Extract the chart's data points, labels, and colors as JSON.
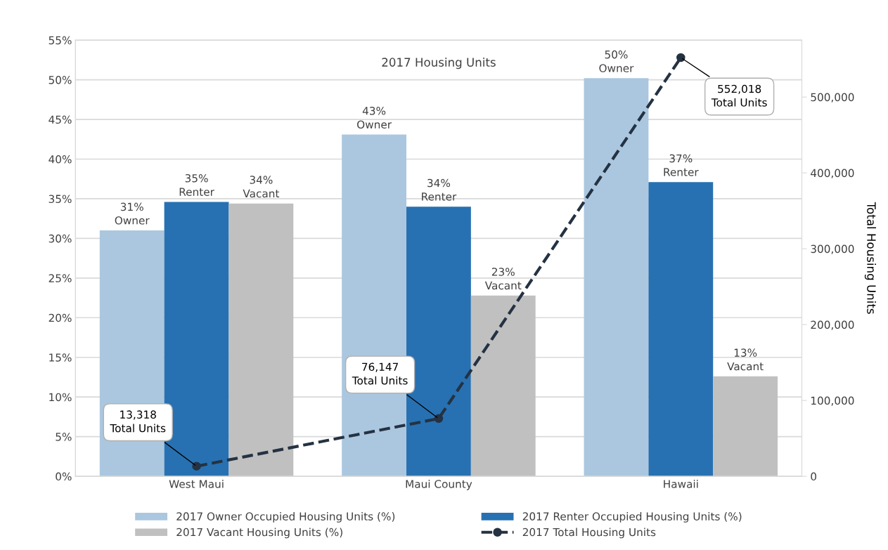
{
  "chart_data": {
    "type": "bar",
    "title": "2017 Housing Units",
    "y2label": "Total Housing Units",
    "categories": [
      "West Maui",
      "Maui County",
      "Hawaii"
    ],
    "series": [
      {
        "name": "2017 Owner Occupied Housing Units (%)",
        "color": "#abc7df",
        "values": [
          31.0,
          43.1,
          50.2
        ],
        "value_labels": [
          "31%\nOwner",
          "43%\nOwner",
          "50%\nOwner"
        ]
      },
      {
        "name": "2017 Renter Occupied Housing Units (%)",
        "color": "#2771b2",
        "values": [
          34.6,
          34.0,
          37.1
        ],
        "value_labels": [
          "35%\nRenter",
          "34%\nRenter",
          "37%\nRenter"
        ]
      },
      {
        "name": "2017 Vacant Housing Units (%)",
        "color": "#c0c0c0",
        "values": [
          34.4,
          22.8,
          12.6
        ],
        "value_labels": [
          "34%\nVacant",
          "23%\nVacant",
          "13%\nVacant"
        ]
      },
      {
        "name": "2017 Total Housing Units",
        "type": "line",
        "axis": "y2",
        "color": "#243242",
        "values": [
          13318,
          76147,
          552018
        ],
        "value_labels": [
          "13,318\nTotal Units",
          "76,147\nTotal Units",
          "552,018\nTotal Units"
        ],
        "marker": "circle",
        "line_style": "dashed"
      }
    ],
    "ylim": [
      0,
      55
    ],
    "yticks": [
      {
        "value": 0,
        "label": "0%"
      },
      {
        "value": 5,
        "label": "5%"
      },
      {
        "value": 10,
        "label": "10%"
      },
      {
        "value": 15,
        "label": "15%"
      },
      {
        "value": 20,
        "label": "20%"
      },
      {
        "value": 25,
        "label": "25%"
      },
      {
        "value": 30,
        "label": "30%"
      },
      {
        "value": 35,
        "label": "35%"
      },
      {
        "value": 40,
        "label": "40%"
      },
      {
        "value": 45,
        "label": "45%"
      },
      {
        "value": 50,
        "label": "50%"
      },
      {
        "value": 55,
        "label": "55%"
      }
    ],
    "y2lim": [
      0,
      575000
    ],
    "y2ticks": [
      {
        "value": 0,
        "label": "0"
      },
      {
        "value": 100000,
        "label": "100,000"
      },
      {
        "value": 200000,
        "label": "200,000"
      },
      {
        "value": 300000,
        "label": "300,000"
      },
      {
        "value": 400000,
        "label": "400,000"
      },
      {
        "value": 500000,
        "label": "500,000"
      }
    ],
    "grid": "y",
    "legend": "bottom"
  }
}
